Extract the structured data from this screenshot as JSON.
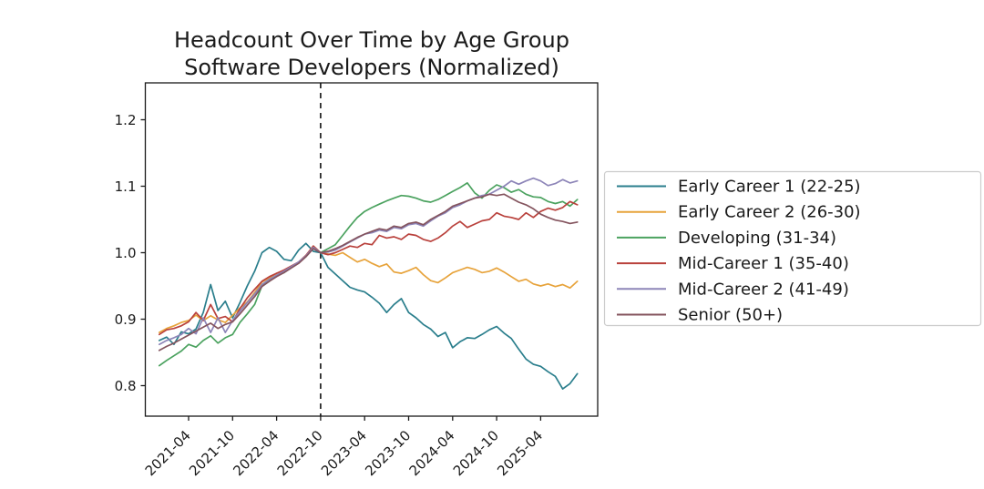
{
  "chart_data": {
    "type": "line",
    "title": "Headcount Over Time by Age Group",
    "subtitle": "Software Developers (Normalized)",
    "xlabel": "",
    "ylabel": "",
    "grid": false,
    "legend_position": "right",
    "y_ticks": [
      0.8,
      0.9,
      1.0,
      1.1,
      1.2
    ],
    "y_tick_labels": [
      "0.8",
      "0.9",
      "1.0",
      "1.1",
      "1.2"
    ],
    "ylim": [
      0.75,
      1.26
    ],
    "x_tick_labels": [
      "2021-04",
      "2021-10",
      "2022-04",
      "2022-10",
      "2023-04",
      "2023-10",
      "2024-04",
      "2024-10",
      "2025-04"
    ],
    "x_tick_indices": [
      4,
      10,
      16,
      22,
      28,
      34,
      40,
      46,
      52
    ],
    "normalization_marker": {
      "x": "2022-10",
      "index": 22,
      "style": "dashed",
      "color": "#111111"
    },
    "frame_color": "#1a1a1a",
    "x": [
      "2020-12",
      "2021-01",
      "2021-02",
      "2021-03",
      "2021-04",
      "2021-05",
      "2021-06",
      "2021-07",
      "2021-08",
      "2021-09",
      "2021-10",
      "2021-11",
      "2021-12",
      "2022-01",
      "2022-02",
      "2022-03",
      "2022-04",
      "2022-05",
      "2022-06",
      "2022-07",
      "2022-08",
      "2022-09",
      "2022-10",
      "2022-11",
      "2022-12",
      "2023-01",
      "2023-02",
      "2023-03",
      "2023-04",
      "2023-05",
      "2023-06",
      "2023-07",
      "2023-08",
      "2023-09",
      "2023-10",
      "2023-11",
      "2023-12",
      "2024-01",
      "2024-02",
      "2024-03",
      "2024-04",
      "2024-05",
      "2024-06",
      "2024-07",
      "2024-08",
      "2024-09",
      "2024-10",
      "2024-11",
      "2024-12",
      "2025-01",
      "2025-02",
      "2025-03",
      "2025-04",
      "2025-05",
      "2025-06",
      "2025-07",
      "2025-08",
      "2025-09"
    ],
    "series": [
      {
        "name": "Early Career 1 (22-25)",
        "color": "#2a7e8c",
        "values": [
          0.868,
          0.873,
          0.862,
          0.881,
          0.878,
          0.885,
          0.91,
          0.952,
          0.913,
          0.927,
          0.902,
          0.925,
          0.95,
          0.972,
          1.0,
          1.008,
          1.002,
          0.99,
          0.988,
          1.004,
          1.014,
          1.002,
          1.0,
          0.978,
          0.968,
          0.958,
          0.948,
          0.944,
          0.941,
          0.933,
          0.924,
          0.91,
          0.922,
          0.931,
          0.91,
          0.902,
          0.892,
          0.885,
          0.874,
          0.88,
          0.857,
          0.866,
          0.872,
          0.871,
          0.877,
          0.884,
          0.889,
          0.879,
          0.871,
          0.855,
          0.84,
          0.832,
          0.829,
          0.821,
          0.814,
          0.795,
          0.803,
          0.818
        ]
      },
      {
        "name": "Early Career 2 (26-30)",
        "color": "#e7a33b",
        "values": [
          0.88,
          0.886,
          0.89,
          0.895,
          0.898,
          0.906,
          0.898,
          0.905,
          0.899,
          0.895,
          0.906,
          0.917,
          0.926,
          0.94,
          0.956,
          0.962,
          0.969,
          0.972,
          0.978,
          0.985,
          0.995,
          1.01,
          1.0,
          0.998,
          0.996,
          1.0,
          0.993,
          0.986,
          0.99,
          0.984,
          0.979,
          0.983,
          0.971,
          0.969,
          0.973,
          0.978,
          0.967,
          0.958,
          0.955,
          0.962,
          0.97,
          0.974,
          0.978,
          0.975,
          0.97,
          0.972,
          0.977,
          0.971,
          0.964,
          0.957,
          0.96,
          0.953,
          0.95,
          0.953,
          0.949,
          0.952,
          0.947,
          0.957
        ]
      },
      {
        "name": "Developing (31-34)",
        "color": "#4ba25f",
        "values": [
          0.83,
          0.838,
          0.845,
          0.852,
          0.862,
          0.858,
          0.868,
          0.875,
          0.864,
          0.872,
          0.877,
          0.895,
          0.908,
          0.922,
          0.95,
          0.957,
          0.966,
          0.97,
          0.978,
          0.985,
          0.994,
          1.008,
          1.0,
          1.006,
          1.012,
          1.026,
          1.04,
          1.053,
          1.062,
          1.068,
          1.073,
          1.078,
          1.082,
          1.086,
          1.085,
          1.082,
          1.078,
          1.076,
          1.08,
          1.086,
          1.092,
          1.098,
          1.105,
          1.09,
          1.082,
          1.094,
          1.102,
          1.098,
          1.091,
          1.095,
          1.088,
          1.084,
          1.083,
          1.077,
          1.074,
          1.077,
          1.07,
          1.08
        ]
      },
      {
        "name": "Mid-Career 1 (35-40)",
        "color": "#b9413c",
        "values": [
          0.877,
          0.884,
          0.886,
          0.89,
          0.896,
          0.91,
          0.898,
          0.922,
          0.901,
          0.904,
          0.896,
          0.916,
          0.932,
          0.945,
          0.957,
          0.964,
          0.969,
          0.974,
          0.98,
          0.986,
          0.996,
          1.01,
          1.0,
          0.997,
          1.0,
          1.005,
          1.01,
          1.008,
          1.014,
          1.012,
          1.026,
          1.022,
          1.024,
          1.02,
          1.028,
          1.026,
          1.02,
          1.017,
          1.022,
          1.03,
          1.04,
          1.047,
          1.038,
          1.043,
          1.048,
          1.05,
          1.06,
          1.055,
          1.053,
          1.05,
          1.06,
          1.053,
          1.062,
          1.067,
          1.064,
          1.068,
          1.077,
          1.072
        ]
      },
      {
        "name": "Mid-Career 2 (41-49)",
        "color": "#8d85b8",
        "values": [
          0.862,
          0.868,
          0.872,
          0.877,
          0.886,
          0.878,
          0.902,
          0.88,
          0.902,
          0.88,
          0.898,
          0.912,
          0.925,
          0.938,
          0.952,
          0.96,
          0.966,
          0.972,
          0.979,
          0.986,
          0.995,
          1.008,
          1.0,
          1.001,
          1.004,
          1.01,
          1.016,
          1.022,
          1.028,
          1.03,
          1.034,
          1.032,
          1.038,
          1.036,
          1.042,
          1.044,
          1.04,
          1.048,
          1.055,
          1.06,
          1.068,
          1.072,
          1.078,
          1.082,
          1.086,
          1.088,
          1.094,
          1.1,
          1.108,
          1.103,
          1.108,
          1.112,
          1.108,
          1.101,
          1.104,
          1.11,
          1.105,
          1.108
        ]
      },
      {
        "name": "Senior (50+)",
        "color": "#84545e",
        "values": [
          0.853,
          0.859,
          0.864,
          0.87,
          0.876,
          0.882,
          0.888,
          0.894,
          0.886,
          0.892,
          0.896,
          0.908,
          0.921,
          0.934,
          0.949,
          0.957,
          0.964,
          0.97,
          0.977,
          0.984,
          0.994,
          1.006,
          1.0,
          1.002,
          1.006,
          1.011,
          1.017,
          1.023,
          1.028,
          1.032,
          1.036,
          1.034,
          1.04,
          1.038,
          1.044,
          1.046,
          1.042,
          1.05,
          1.056,
          1.062,
          1.07,
          1.074,
          1.078,
          1.082,
          1.084,
          1.088,
          1.086,
          1.088,
          1.082,
          1.076,
          1.072,
          1.066,
          1.058,
          1.053,
          1.049,
          1.047,
          1.044,
          1.046
        ]
      }
    ]
  }
}
